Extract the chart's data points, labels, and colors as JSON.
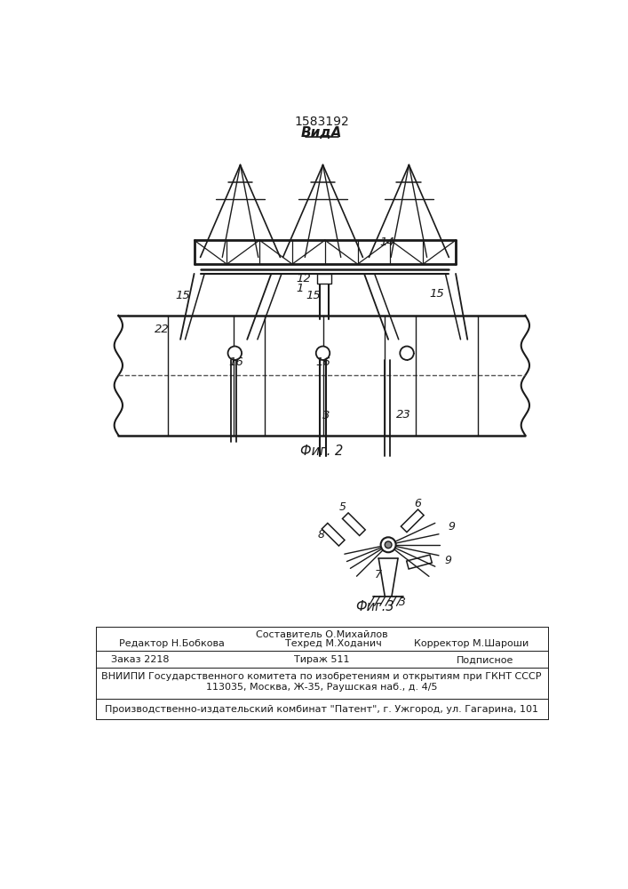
{
  "patent_number": "1583192",
  "view_label": "ВидА",
  "fig2_label": "Фиг. 2",
  "fig3_label": "Фиг.3",
  "bg_color": "#ffffff",
  "line_color": "#1a1a1a",
  "editor_line1": "Составитель О.Михайлов",
  "editor_line2_left": "Редактор Н.Бобкова",
  "editor_line2_mid": "Техред М.Ходанич",
  "editor_line2_right": "Корректор М.Шароши",
  "order_left": "Заказ 2218",
  "order_mid": "Тираж 511",
  "order_right": "Подписное",
  "vnipi_line1": "ВНИИПИ Государственного комитета по изобретениям и открытиям при ГКНТ СССР",
  "vnipi_line2": "113035, Москва, Ж-35, Раушская наб., д. 4/5",
  "factory_line": "Производственно-издательский комбинат \"Патент\", г. Ужгород, ул. Гагарина, 101"
}
